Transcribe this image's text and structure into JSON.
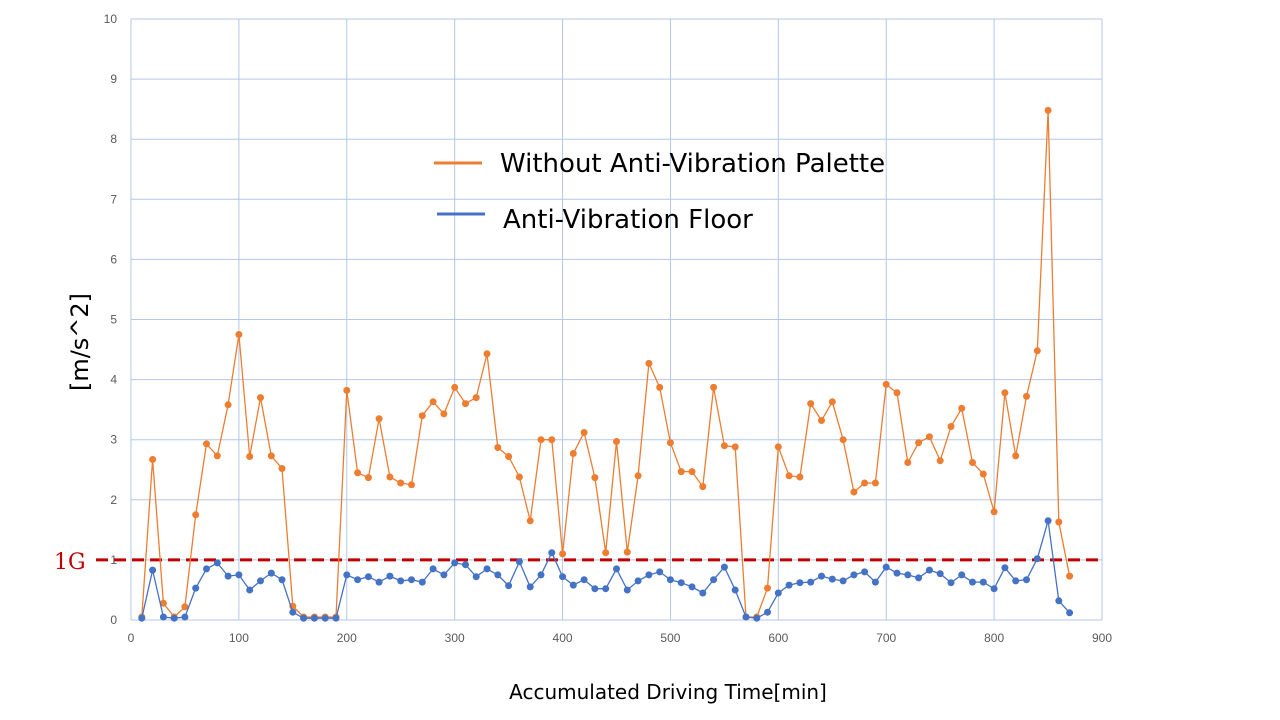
{
  "chart_data": {
    "type": "line",
    "title": "",
    "xlabel": "Accumulated Driving Time[min]",
    "ylabel": "[m/s^2]",
    "xlim": [
      0,
      900
    ],
    "ylim": [
      0,
      10
    ],
    "x_ticks": [
      0,
      100,
      200,
      300,
      400,
      500,
      600,
      700,
      800,
      900
    ],
    "y_ticks": [
      0,
      1,
      2,
      3,
      4,
      5,
      6,
      7,
      8,
      9,
      10
    ],
    "grid": true,
    "legend_position": "upper-center",
    "reference_line": {
      "y": 1,
      "label": "1G",
      "color": "#c00000",
      "style": "dashed"
    },
    "x": [
      10,
      20,
      30,
      40,
      50,
      60,
      70,
      80,
      90,
      100,
      110,
      120,
      130,
      140,
      150,
      160,
      170,
      180,
      190,
      200,
      210,
      220,
      230,
      240,
      250,
      260,
      270,
      280,
      290,
      300,
      310,
      320,
      330,
      340,
      350,
      360,
      370,
      380,
      390,
      400,
      410,
      420,
      430,
      440,
      450,
      460,
      470,
      480,
      490,
      500,
      510,
      520,
      530,
      540,
      550,
      560,
      570,
      580,
      590,
      600,
      610,
      620,
      630,
      640,
      650,
      660,
      670,
      680,
      690,
      700,
      710,
      720,
      730,
      740,
      750,
      760,
      770,
      780,
      790,
      800,
      810,
      820,
      830,
      840,
      850,
      860,
      870
    ],
    "series": [
      {
        "name": "Without Anti-Vibration Palette",
        "color": "#ed7d31",
        "values": [
          0.05,
          2.67,
          0.28,
          0.05,
          0.22,
          1.75,
          2.93,
          2.73,
          3.58,
          4.75,
          2.72,
          3.7,
          2.73,
          2.52,
          0.23,
          0.05,
          0.05,
          0.05,
          0.05,
          3.82,
          2.45,
          2.37,
          3.35,
          2.38,
          2.28,
          2.25,
          3.4,
          3.63,
          3.43,
          3.87,
          3.6,
          3.7,
          4.43,
          2.87,
          2.72,
          2.38,
          1.65,
          3.0,
          3.0,
          1.1,
          2.77,
          3.12,
          2.37,
          1.12,
          2.97,
          1.13,
          2.4,
          4.27,
          3.87,
          2.95,
          2.47,
          2.47,
          2.22,
          3.87,
          2.9,
          2.88,
          0.05,
          0.05,
          0.53,
          2.88,
          2.4,
          2.38,
          3.6,
          3.32,
          3.63,
          3.0,
          2.13,
          2.28,
          2.28,
          3.92,
          3.78,
          2.62,
          2.95,
          3.05,
          2.65,
          3.22,
          3.52,
          2.62,
          2.43,
          1.8,
          3.78,
          2.73,
          3.72,
          4.48,
          8.48,
          1.63,
          0.73
        ]
      },
      {
        "name": "Anti-Vibration Floor",
        "color": "#4472c4",
        "values": [
          0.03,
          0.83,
          0.05,
          0.03,
          0.05,
          0.53,
          0.85,
          0.95,
          0.73,
          0.75,
          0.5,
          0.65,
          0.78,
          0.67,
          0.13,
          0.03,
          0.03,
          0.03,
          0.03,
          0.75,
          0.67,
          0.72,
          0.63,
          0.73,
          0.65,
          0.67,
          0.63,
          0.85,
          0.75,
          0.95,
          0.92,
          0.72,
          0.85,
          0.75,
          0.57,
          0.97,
          0.55,
          0.75,
          1.12,
          0.72,
          0.58,
          0.67,
          0.52,
          0.52,
          0.85,
          0.5,
          0.65,
          0.75,
          0.8,
          0.67,
          0.62,
          0.55,
          0.45,
          0.67,
          0.88,
          0.5,
          0.05,
          0.03,
          0.13,
          0.45,
          0.58,
          0.62,
          0.63,
          0.73,
          0.68,
          0.65,
          0.75,
          0.8,
          0.63,
          0.88,
          0.78,
          0.75,
          0.7,
          0.83,
          0.77,
          0.62,
          0.75,
          0.63,
          0.63,
          0.52,
          0.87,
          0.65,
          0.67,
          1.02,
          1.65,
          0.32,
          0.12
        ]
      }
    ]
  }
}
